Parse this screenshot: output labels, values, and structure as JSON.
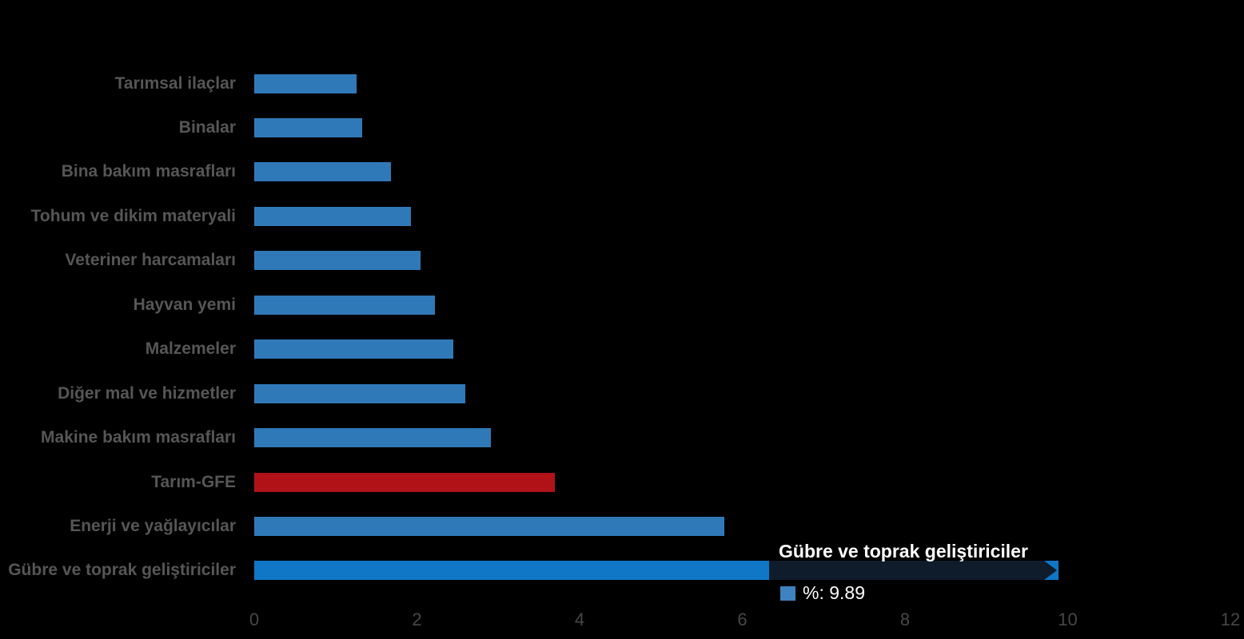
{
  "chart_data": {
    "type": "bar",
    "orientation": "horizontal",
    "title": "",
    "xlabel": "",
    "ylabel": "",
    "xlim": [
      0,
      12
    ],
    "x_ticks": [
      0,
      2,
      4,
      6,
      8,
      10,
      12
    ],
    "grid": false,
    "legend_position": "none",
    "series_name": "%",
    "categories": [
      "Tarımsal ilaçlar",
      "Binalar",
      "Bina bakım masrafları",
      "Tohum ve dikim materyali",
      "Veteriner harcamaları",
      "Hayvan yemi",
      "Malzemeler",
      "Diğer mal ve hizmetler",
      "Makine bakım masrafları",
      "Tarım-GFE",
      "Enerji  ve yağlayıcılar",
      "Gübre ve toprak geliştiriciler"
    ],
    "values": [
      1.26,
      1.33,
      1.68,
      1.93,
      2.04,
      2.22,
      2.45,
      2.59,
      2.91,
      3.7,
      5.78,
      9.89
    ],
    "emphasis_category": "Tarım-GFE",
    "hovered_category": "Gübre ve toprak geliştiriciler"
  },
  "tooltip": {
    "title": "Gübre ve toprak geliştiriciler",
    "value_text": "%: 9.89",
    "marker_color": "#3E82C0",
    "background_color": "#0E1C2B",
    "text_color": "#FFFFFF"
  },
  "colors": {
    "background": "#000000",
    "bar_default": "#3079B8",
    "bar_emphasis": "#B01218",
    "bar_hover": "#1076C6",
    "category_label": "#565656",
    "tick_label": "#474747"
  }
}
